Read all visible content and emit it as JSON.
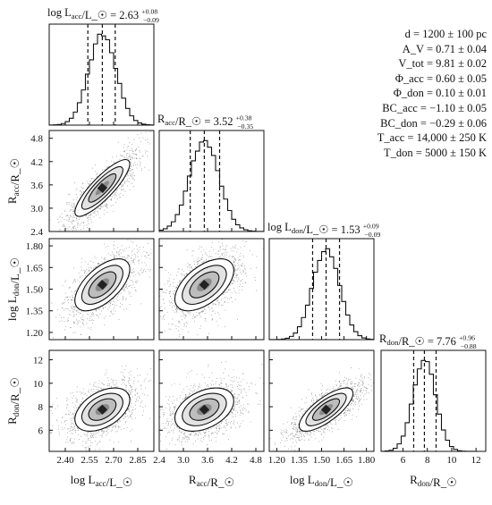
{
  "parameters": [
    "d = 1200 ± 100 pc",
    "A_V = 0.71 ± 0.04",
    "V_tot = 9.81 ± 0.02",
    "Φ_acc = 0.60 ± 0.05",
    "Φ_don = 0.10 ± 0.01",
    "BC_acc = −1.10 ± 0.05",
    "BC_don = −0.29 ± 0.06",
    "T_acc = 14,000 ± 250 K",
    "T_don = 5000 ± 150 K"
  ],
  "chart_data": {
    "type": "corner",
    "variables": [
      {
        "label": "log L_acc/L_☉",
        "title": "log L_acc/L_☉ = 2.63 +0.08 −0.09",
        "median": 2.63,
        "err_plus": 0.08,
        "err_minus": 0.09,
        "quantiles": [
          2.54,
          2.63,
          2.71
        ],
        "range": [
          2.3,
          2.95
        ],
        "ticks": [
          "2.40",
          "2.55",
          "2.70",
          "2.85"
        ],
        "tick_values": [
          2.4,
          2.55,
          2.7,
          2.85
        ]
      },
      {
        "label": "R_acc/R_☉",
        "title": "R_acc/R_☉ = 3.52 +0.38 −0.35",
        "median": 3.52,
        "err_plus": 0.38,
        "err_minus": 0.35,
        "quantiles": [
          3.17,
          3.52,
          3.9
        ],
        "range": [
          2.4,
          5.0
        ],
        "ticks": [
          "2.4",
          "3.0",
          "3.6",
          "4.2",
          "4.8"
        ],
        "tick_values": [
          2.4,
          3.0,
          3.6,
          4.2,
          4.8
        ]
      },
      {
        "label": "log L_don/L_☉",
        "title": "log L_don/L_☉ = 1.53 +0.09 −0.09",
        "median": 1.53,
        "err_plus": 0.09,
        "err_minus": 0.09,
        "quantiles": [
          1.44,
          1.53,
          1.62
        ],
        "range": [
          1.15,
          1.85
        ],
        "ticks": [
          "1.20",
          "1.35",
          "1.50",
          "1.65",
          "1.80"
        ],
        "tick_values": [
          1.2,
          1.35,
          1.5,
          1.65,
          1.8
        ]
      },
      {
        "label": "R_don/R_☉",
        "title": "R_don/R_☉ = 7.76 +0.96 −0.88",
        "median": 7.76,
        "err_plus": 0.96,
        "err_minus": 0.88,
        "quantiles": [
          6.88,
          7.76,
          8.72
        ],
        "range": [
          4.2,
          12.8
        ],
        "ticks": [
          "6",
          "8",
          "10",
          "12"
        ],
        "tick_values": [
          6,
          8,
          10,
          12
        ]
      }
    ],
    "correlations": [
      [
        1,
        0.85,
        0.6,
        0.45
      ],
      [
        0.85,
        1,
        0.55,
        0.4
      ],
      [
        0.6,
        0.55,
        1,
        0.75
      ],
      [
        0.45,
        0.4,
        0.75,
        1
      ]
    ]
  }
}
